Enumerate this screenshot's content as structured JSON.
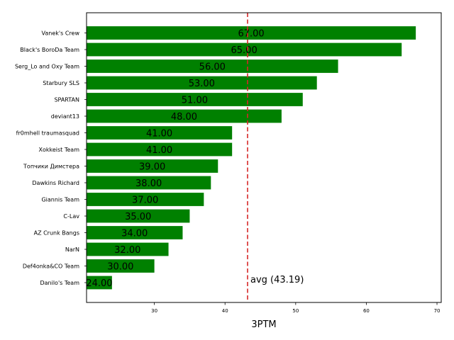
{
  "chart_data": {
    "type": "bar",
    "orientation": "horizontal",
    "categories": [
      "Vanek's Crew",
      "Black's BoroDa Team",
      "Serg_Lo and Oxy Team",
      "Starbury SLS",
      "SPARTAN",
      "deviant13",
      "fr0mhell traumasquad",
      "Xokkeist Team",
      "Топчики Димстера",
      "Dawkins Richard",
      "Giannis Team",
      "C-Lav",
      "AZ Crunk Bangs",
      "NarN",
      "Def4onka&CO Team",
      "Danilo's Team"
    ],
    "values": [
      67,
      65,
      56,
      53,
      51,
      48,
      41,
      41,
      39,
      38,
      37,
      35,
      34,
      32,
      30,
      24
    ],
    "value_labels": [
      "67.00",
      "65.00",
      "56.00",
      "53.00",
      "51.00",
      "48.00",
      "41.00",
      "41.00",
      "39.00",
      "38.00",
      "37.00",
      "35.00",
      "34.00",
      "32.00",
      "30.00",
      "24.00"
    ],
    "xlabel": "3PTM",
    "ylabel": "",
    "xlim": [
      20.4,
      70.6
    ],
    "xticks": [
      30,
      40,
      50,
      60,
      70
    ],
    "xtick_labels": [
      "30",
      "40",
      "50",
      "60",
      "70"
    ],
    "bar_color": "#008000",
    "average": 43.19,
    "average_label": "avg (43.19)",
    "average_line_color": "#d62728",
    "grid": false
  }
}
